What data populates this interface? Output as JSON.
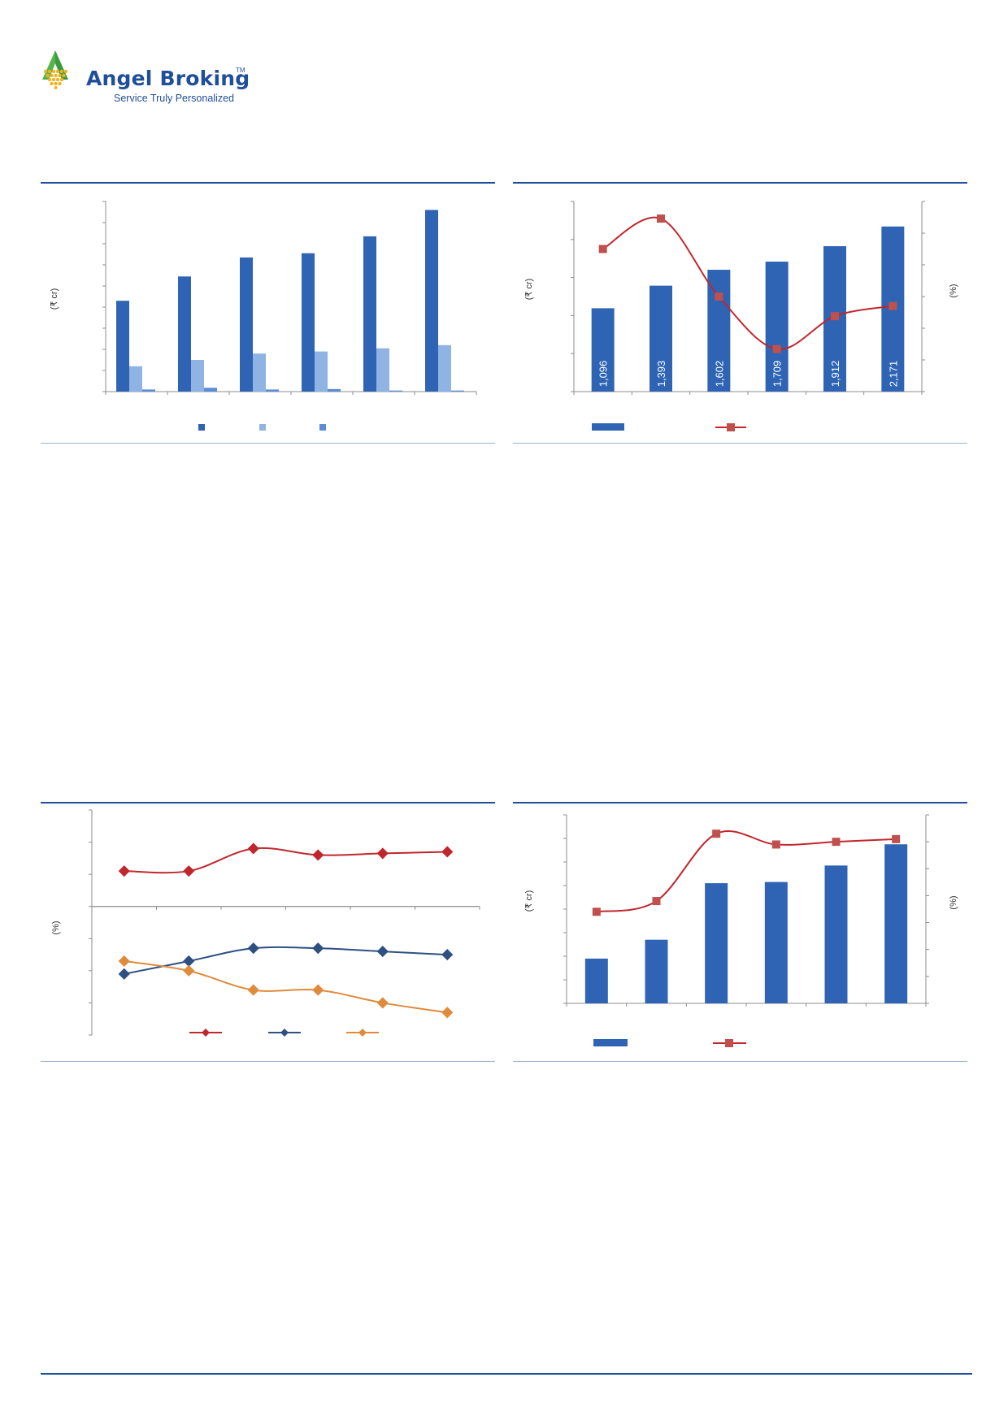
{
  "header": {
    "brand": "Angel Broking",
    "trademark": "TM",
    "tagline": "Service Truly Personalized"
  },
  "colors": {
    "primary": "#2e64b3",
    "light": "#8fb4e3",
    "mid": "#5b8dd6",
    "red": "#c0272d",
    "marker": "#c0504d",
    "navy": "#2d4f82",
    "orange": "#e08a3c"
  },
  "chart_data": [
    {
      "type": "bar",
      "ylabel": "(₹ cr)",
      "series": [
        {
          "values": [
            4300,
            5450,
            6350,
            6550,
            7350,
            8600
          ]
        },
        {
          "values": [
            1200,
            1500,
            1800,
            1900,
            2050,
            2200
          ]
        },
        {
          "values": [
            100,
            180,
            100,
            120,
            50,
            50
          ]
        }
      ],
      "ylim": [
        0,
        9000
      ]
    },
    {
      "type": "bar",
      "ylabel": "(₹ cr)",
      "y2label": "(%)",
      "bar_values": [
        1096,
        1393,
        1602,
        1709,
        1912,
        2171
      ],
      "bar_labels": [
        "1,096",
        "1,393",
        "1,602",
        "1,709",
        "1,912",
        "2,171"
      ],
      "line_values": [
        22.5,
        27.3,
        15.0,
        6.7,
        11.9,
        13.5
      ],
      "ylim": [
        0,
        2500
      ],
      "y2lim": [
        0,
        30
      ]
    },
    {
      "type": "line",
      "ylabel": "(%)",
      "series": [
        {
          "values": [
            1.1,
            1.1,
            1.8,
            1.6,
            1.65,
            1.7
          ]
        },
        {
          "values": [
            -2.1,
            -1.7,
            -1.3,
            -1.3,
            -1.4,
            -1.5
          ]
        },
        {
          "values": [
            -1.7,
            -2.0,
            -2.6,
            -2.6,
            -3.0,
            -3.3
          ]
        }
      ],
      "ylim": [
        -4,
        3
      ]
    },
    {
      "type": "bar",
      "ylabel": "(₹ cr)",
      "y2label": "(%)",
      "bar_values": [
        190,
        270,
        510,
        515,
        585,
        675
      ],
      "line_values": [
        3.4,
        3.8,
        6.3,
        5.9,
        6.0,
        6.1
      ],
      "ylim": [
        0,
        800
      ],
      "y2lim": [
        0,
        7
      ]
    }
  ]
}
